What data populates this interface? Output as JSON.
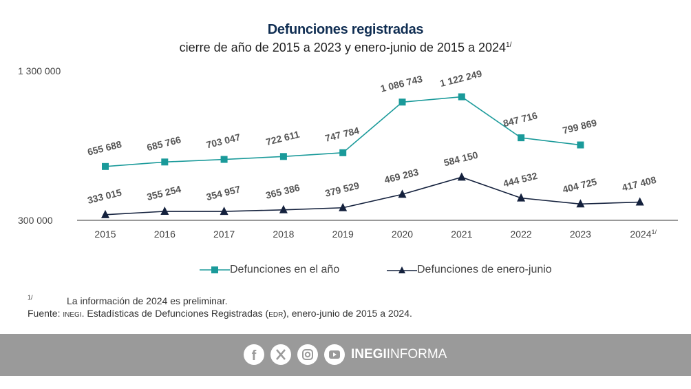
{
  "title": "Defunciones registradas",
  "subtitle": "cierre de año de 2015 a 2023 y enero-junio de 2015 a 2024",
  "subtitle_sup": "1/",
  "chart_data": {
    "type": "line",
    "categories": [
      "2015",
      "2016",
      "2017",
      "2018",
      "2019",
      "2020",
      "2021",
      "2022",
      "2023",
      "2024"
    ],
    "category_sup": {
      "2024": "1/"
    },
    "ylim": [
      300000,
      1300000
    ],
    "yticks": [
      "300 000",
      "1 300 000"
    ],
    "grid": false,
    "legend_position": "bottom",
    "series": [
      {
        "name": "Defunciones en el año",
        "color": "#1a9a9a",
        "marker": "square",
        "values": [
          655688,
          685766,
          703047,
          722611,
          747784,
          1086743,
          1122249,
          847716,
          799869,
          null
        ],
        "labels": [
          "655 688",
          "685 766",
          "703 047",
          "722 611",
          "747 784",
          "1 086 743",
          "1 122 249",
          "847 716",
          "799 869",
          ""
        ]
      },
      {
        "name": "Defunciones de enero-junio",
        "color": "#14213d",
        "marker": "triangle",
        "values": [
          333015,
          355254,
          354957,
          365386,
          379529,
          469283,
          584150,
          444532,
          404725,
          417408
        ],
        "labels": [
          "333 015",
          "355 254",
          "354 957",
          "365 386",
          "379 529",
          "469 283",
          "584 150",
          "444 532",
          "404 725",
          "417 408"
        ]
      }
    ]
  },
  "notes": {
    "footnote_mark": "1/",
    "footnote": "La información de 2024 es preliminar.",
    "source_label": "Fuente:",
    "source_org": "INEGI",
    "source_text": ". Estadísticas de Defunciones Registradas (",
    "source_abbr": "EDR",
    "source_end": "), enero-junio de 2015 a 2024."
  },
  "footer": {
    "icons": [
      "facebook-icon",
      "x-icon",
      "instagram-icon",
      "youtube-icon"
    ],
    "brand_bold": "INEGI",
    "brand_light": "INFORMA",
    "background": "#9a9a9a"
  }
}
